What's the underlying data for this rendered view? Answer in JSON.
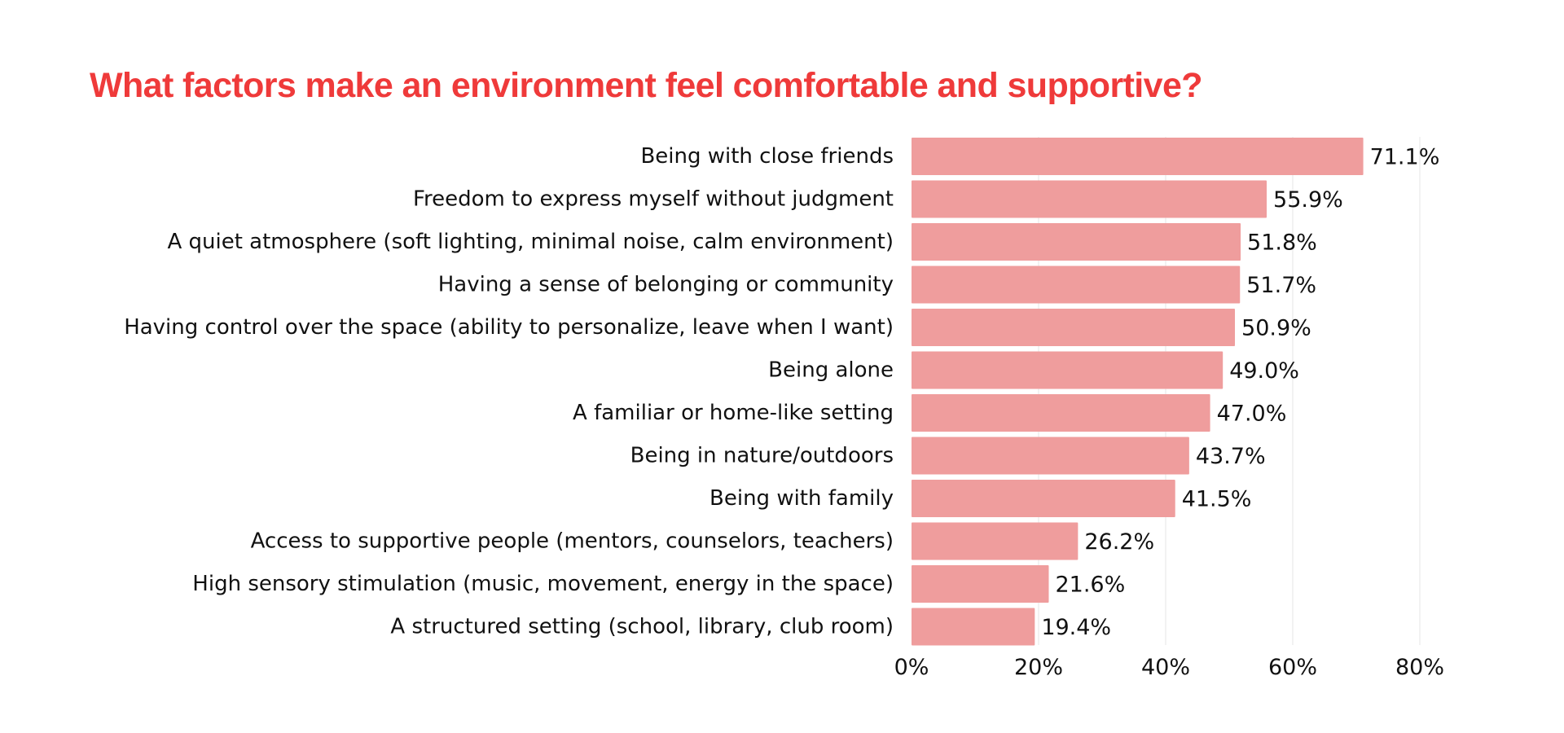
{
  "chart_data": {
    "type": "bar",
    "orientation": "horizontal",
    "title": "What factors make an environment feel comfortable and supportive?",
    "categories": [
      "Being with close friends",
      "Freedom to express myself without judgment",
      "A quiet atmosphere (soft lighting, minimal noise, calm environment)",
      "Having a sense of belonging or community",
      "Having control over the space (ability to personalize, leave when I want)",
      "Being alone",
      "A familiar or home-like setting",
      "Being in nature/outdoors",
      "Being with family",
      "Access to supportive people (mentors, counselors, teachers)",
      "High sensory stimulation (music, movement, energy in the space)",
      "A structured setting (school, library, club room)"
    ],
    "values": [
      71.1,
      55.9,
      51.8,
      51.7,
      50.9,
      49.0,
      47.0,
      43.7,
      41.5,
      26.2,
      21.6,
      19.4
    ],
    "value_labels": [
      "71.1%",
      "55.9%",
      "51.8%",
      "51.7%",
      "50.9%",
      "49.0%",
      "47.0%",
      "43.7%",
      "41.5%",
      "26.2%",
      "21.6%",
      "19.4%"
    ],
    "xlim": [
      0,
      80
    ],
    "xticks": [
      0,
      20,
      40,
      60,
      80
    ],
    "xtick_labels": [
      "0%",
      "20%",
      "40%",
      "60%",
      "80%"
    ],
    "xlabel": "",
    "ylabel": "",
    "grid": "vertical",
    "legend": "none",
    "colors": {
      "bar": "#ef9d9d",
      "title": "#ef3a3a",
      "text": "#111111",
      "grid": "#e6e6e6"
    }
  }
}
